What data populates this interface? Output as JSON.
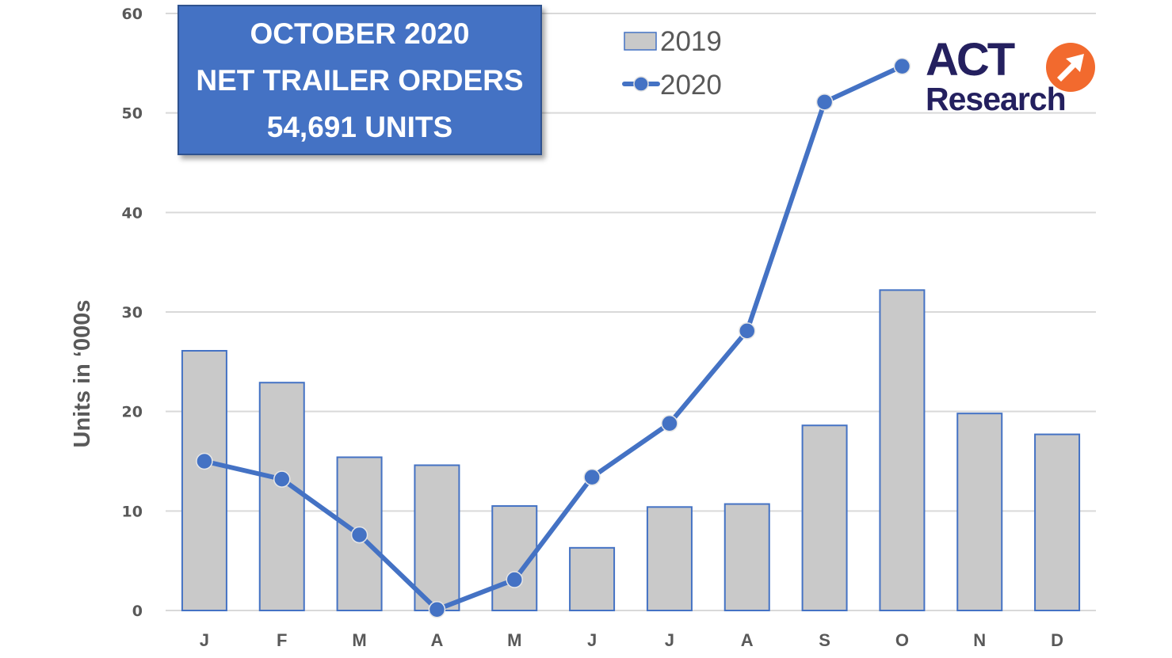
{
  "title_box": {
    "line1": "OCTOBER 2020",
    "line2": "NET TRAILER ORDERS",
    "line3": "54,691 UNITS",
    "background": "#4472c4"
  },
  "logo": {
    "word1": "ACT",
    "word2": "Research",
    "icon": "arrow-up-right-circle-icon",
    "brand_color": "#24205f",
    "accent_color": "#f26a2e"
  },
  "legend": [
    {
      "label": "2019",
      "type": "bar",
      "color": "#c9c9c9",
      "border": "#4472c4"
    },
    {
      "label": "2020",
      "type": "line",
      "color": "#4472c4"
    }
  ],
  "chart_data": {
    "type": "bar",
    "title": "October 2020 Net Trailer Orders 54,691 Units",
    "xlabel": "",
    "ylabel": "Units in ‘000s",
    "categories": [
      "J",
      "F",
      "M",
      "A",
      "M",
      "J",
      "J",
      "A",
      "S",
      "O",
      "N",
      "D"
    ],
    "series": [
      {
        "name": "2019",
        "type": "bar",
        "color": "#c9c9c9",
        "values": [
          26.1,
          22.9,
          15.4,
          14.6,
          10.5,
          6.3,
          10.4,
          10.7,
          18.6,
          32.2,
          19.8,
          17.7
        ]
      },
      {
        "name": "2020",
        "type": "line",
        "color": "#4472c4",
        "values": [
          15.0,
          13.2,
          7.6,
          0.1,
          3.1,
          13.4,
          18.8,
          28.1,
          51.1,
          54.7,
          null,
          null
        ]
      }
    ],
    "ylim": [
      0,
      60
    ],
    "yticks": [
      "0",
      "10",
      "20",
      "30",
      "40",
      "50",
      "60"
    ],
    "grid": true,
    "legend_position": "top-center"
  }
}
